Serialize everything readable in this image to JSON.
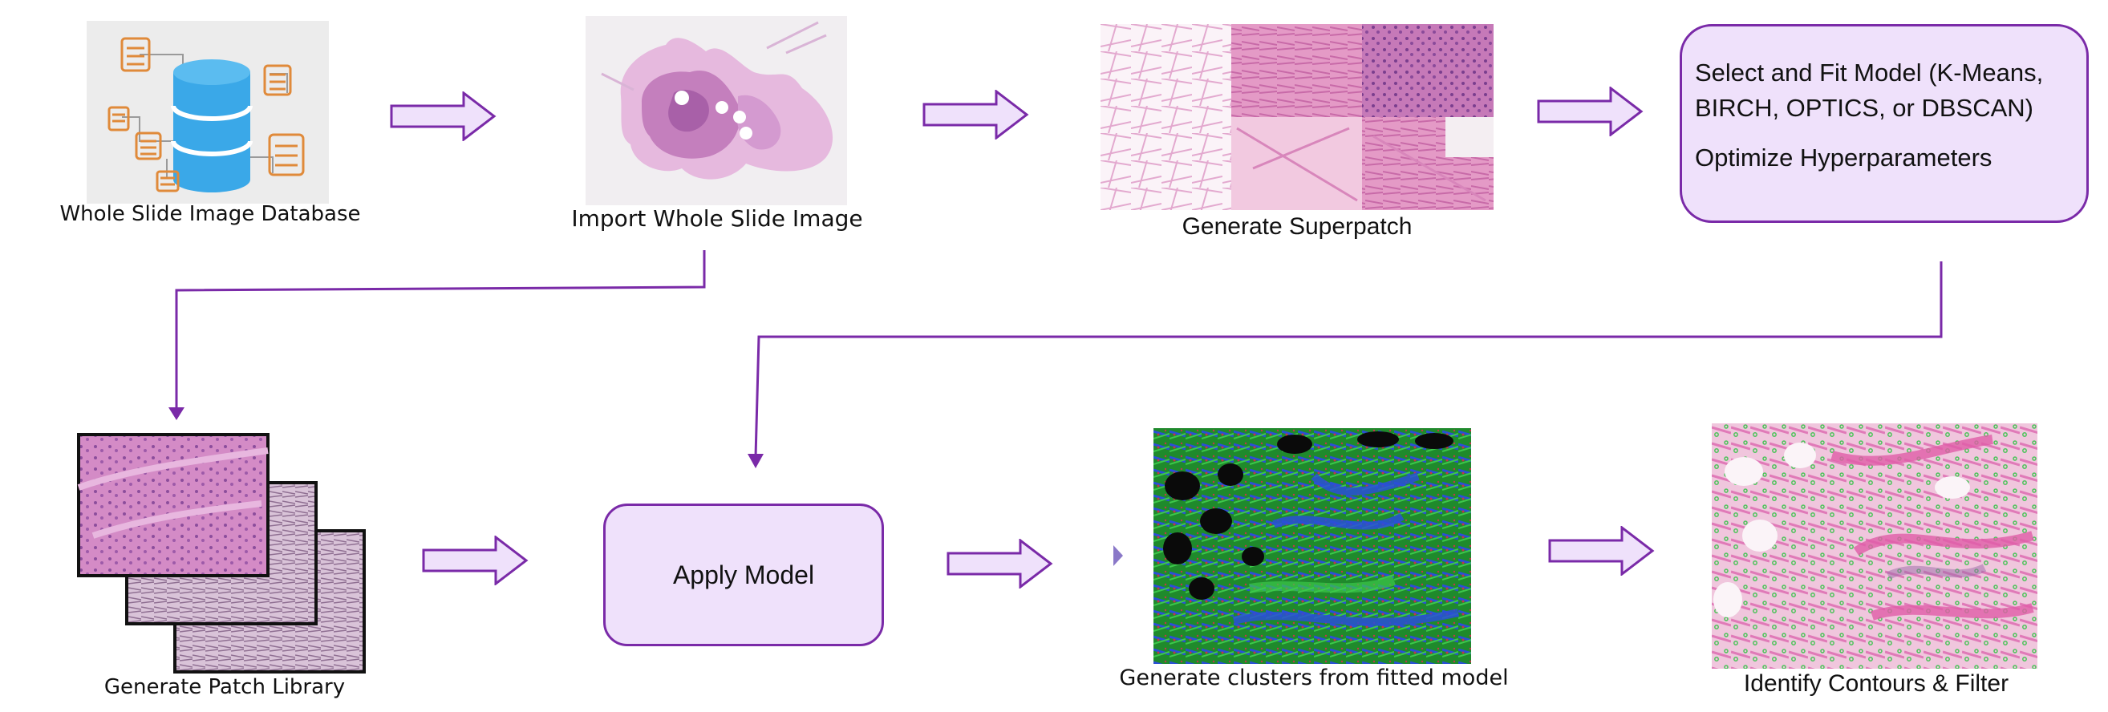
{
  "steps": {
    "database": {
      "caption": "Whole Slide Image Database",
      "icon": "database-icon"
    },
    "import": {
      "caption": "Import Whole Slide Image"
    },
    "superpatch": {
      "caption": "Generate Superpatch"
    },
    "model": {
      "line1": "Select and Fit Model (K-Means,",
      "line2": "BIRCH, OPTICS, or DBSCAN)",
      "line3": "Optimize Hyperparameters"
    },
    "patch_library": {
      "caption": "Generate Patch Library"
    },
    "apply": {
      "label": "Apply Model"
    },
    "clusters": {
      "caption": "Generate clusters from fitted model"
    },
    "contours": {
      "caption": "Identify Contours & Filter"
    }
  },
  "colors": {
    "arrow_stroke": "#7a2aa8",
    "arrow_fill": "#efe1fb",
    "box_fill": "#efe1fb",
    "db_blue": "#3aa8e8",
    "db_orange": "#e08a3a",
    "tissue_pink": "#d77bb8",
    "tissue_purple": "#a45aa6"
  }
}
